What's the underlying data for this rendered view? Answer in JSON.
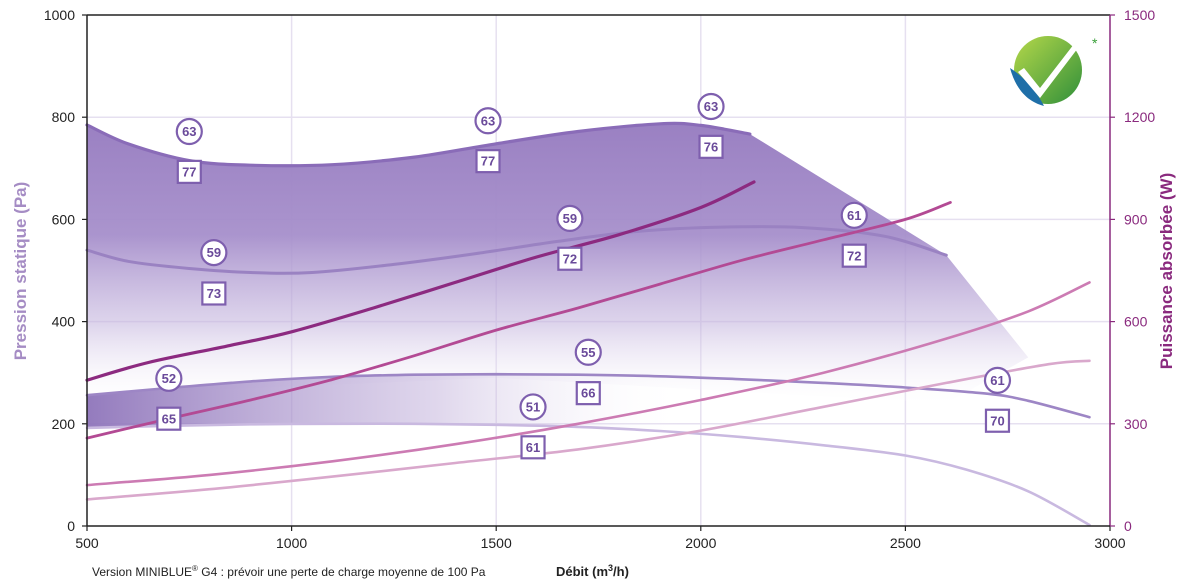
{
  "chart_data": {
    "type": "line",
    "xlabel": "Débit (m³/h)",
    "ylabel_left": "Pression statique (Pa)",
    "ylabel_right": "Puissance absorbée (W)",
    "xlim": [
      500,
      3000
    ],
    "ylim_left": [
      0,
      1000
    ],
    "ylim_right": [
      0,
      1500
    ],
    "x_ticks": [
      "500",
      "1000",
      "1500",
      "2000",
      "2500",
      "3000"
    ],
    "y_left_ticks": [
      "0",
      "200",
      "400",
      "600",
      "800",
      "1000"
    ],
    "y_right_ticks": [
      "0",
      "300",
      "600",
      "900",
      "1200",
      "1500"
    ],
    "grid": true,
    "footnote": "Version MINIBLUE® G4 : prévoir une perte de charge moyenne de 100 Pa",
    "logo_asterisk": "*",
    "colors": {
      "pressure_curve": "#8a6cb8",
      "power_curve_dark": "#8c2a80",
      "power_curve_mid": "#b34a94",
      "power_curve_light": "#cc7bb3",
      "power_curve_lighter": "#d9a8cc",
      "area_fill": "#9d83c3",
      "grid": "#e6e0f0"
    },
    "pressure_series": [
      {
        "points": [
          [
            500,
            785
          ],
          [
            600,
            748
          ],
          [
            750,
            715
          ],
          [
            900,
            706
          ],
          [
            1100,
            707
          ],
          [
            1300,
            722
          ],
          [
            1500,
            748
          ],
          [
            1700,
            772
          ],
          [
            1900,
            787
          ],
          [
            2000,
            784
          ],
          [
            2120,
            767
          ]
        ]
      },
      {
        "points": [
          [
            500,
            540
          ],
          [
            600,
            518
          ],
          [
            750,
            504
          ],
          [
            900,
            496
          ],
          [
            1050,
            496
          ],
          [
            1250,
            512
          ],
          [
            1450,
            533
          ],
          [
            1650,
            557
          ],
          [
            1850,
            577
          ],
          [
            2050,
            585
          ],
          [
            2250,
            584
          ],
          [
            2450,
            567
          ],
          [
            2600,
            530
          ]
        ]
      },
      {
        "points": [
          [
            500,
            256
          ],
          [
            700,
            270
          ],
          [
            900,
            283
          ],
          [
            1100,
            292
          ],
          [
            1300,
            296
          ],
          [
            1500,
            297
          ],
          [
            1700,
            296
          ],
          [
            1900,
            293
          ],
          [
            2100,
            287
          ],
          [
            2300,
            280
          ],
          [
            2500,
            271
          ],
          [
            2700,
            259
          ],
          [
            2800,
            245
          ],
          [
            2950,
            213
          ]
        ]
      },
      {
        "points": [
          [
            500,
            192
          ],
          [
            700,
            196
          ],
          [
            900,
            199
          ],
          [
            1100,
            200
          ],
          [
            1300,
            200
          ],
          [
            1500,
            198
          ],
          [
            1700,
            194
          ],
          [
            1900,
            186
          ],
          [
            2100,
            174
          ],
          [
            2300,
            158
          ],
          [
            2500,
            138
          ],
          [
            2650,
            110
          ],
          [
            2800,
            68
          ],
          [
            2950,
            2
          ]
        ]
      }
    ],
    "power_series": [
      {
        "points": [
          [
            500,
            428
          ],
          [
            650,
            480
          ],
          [
            850,
            530
          ],
          [
            1000,
            570
          ],
          [
            1200,
            640
          ],
          [
            1400,
            715
          ],
          [
            1600,
            790
          ],
          [
            1800,
            855
          ],
          [
            2000,
            935
          ],
          [
            2130,
            1010
          ]
        ]
      },
      {
        "points": [
          [
            500,
            258
          ],
          [
            700,
            315
          ],
          [
            900,
            370
          ],
          [
            1100,
            430
          ],
          [
            1300,
            500
          ],
          [
            1500,
            575
          ],
          [
            1700,
            640
          ],
          [
            1900,
            710
          ],
          [
            2100,
            780
          ],
          [
            2300,
            840
          ],
          [
            2500,
            900
          ],
          [
            2610,
            950
          ]
        ]
      },
      {
        "points": [
          [
            500,
            120
          ],
          [
            800,
            150
          ],
          [
            1100,
            190
          ],
          [
            1400,
            240
          ],
          [
            1700,
            300
          ],
          [
            2000,
            370
          ],
          [
            2300,
            450
          ],
          [
            2600,
            550
          ],
          [
            2800,
            630
          ],
          [
            2950,
            715
          ]
        ]
      },
      {
        "points": [
          [
            500,
            78
          ],
          [
            800,
            108
          ],
          [
            1100,
            145
          ],
          [
            1400,
            185
          ],
          [
            1700,
            225
          ],
          [
            2000,
            280
          ],
          [
            2300,
            350
          ],
          [
            2600,
            420
          ],
          [
            2850,
            475
          ],
          [
            2950,
            485
          ]
        ]
      }
    ],
    "labels": [
      {
        "type": "circle",
        "text": "63",
        "x": 750,
        "y": 772
      },
      {
        "type": "box",
        "text": "77",
        "x": 750,
        "y": 693
      },
      {
        "type": "circle",
        "text": "63",
        "x": 1480,
        "y": 793
      },
      {
        "type": "box",
        "text": "77",
        "x": 1480,
        "y": 714
      },
      {
        "type": "circle",
        "text": "63",
        "x": 2025,
        "y": 821
      },
      {
        "type": "box",
        "text": "76",
        "x": 2025,
        "y": 742
      },
      {
        "type": "circle",
        "text": "59",
        "x": 810,
        "y": 535
      },
      {
        "type": "box",
        "text": "73",
        "x": 810,
        "y": 455
      },
      {
        "type": "circle",
        "text": "59",
        "x": 1680,
        "y": 602
      },
      {
        "type": "box",
        "text": "72",
        "x": 1680,
        "y": 523
      },
      {
        "type": "circle",
        "text": "61",
        "x": 2375,
        "y": 608
      },
      {
        "type": "box",
        "text": "72",
        "x": 2375,
        "y": 529
      },
      {
        "type": "circle",
        "text": "52",
        "x": 700,
        "y": 289
      },
      {
        "type": "box",
        "text": "65",
        "x": 700,
        "y": 210
      },
      {
        "type": "circle",
        "text": "55",
        "x": 1725,
        "y": 340
      },
      {
        "type": "box",
        "text": "66",
        "x": 1725,
        "y": 260
      },
      {
        "type": "circle",
        "text": "51",
        "x": 1590,
        "y": 233
      },
      {
        "type": "box",
        "text": "61",
        "x": 1590,
        "y": 154
      },
      {
        "type": "circle",
        "text": "61",
        "x": 2725,
        "y": 285
      },
      {
        "type": "box",
        "text": "70",
        "x": 2725,
        "y": 206
      }
    ]
  }
}
